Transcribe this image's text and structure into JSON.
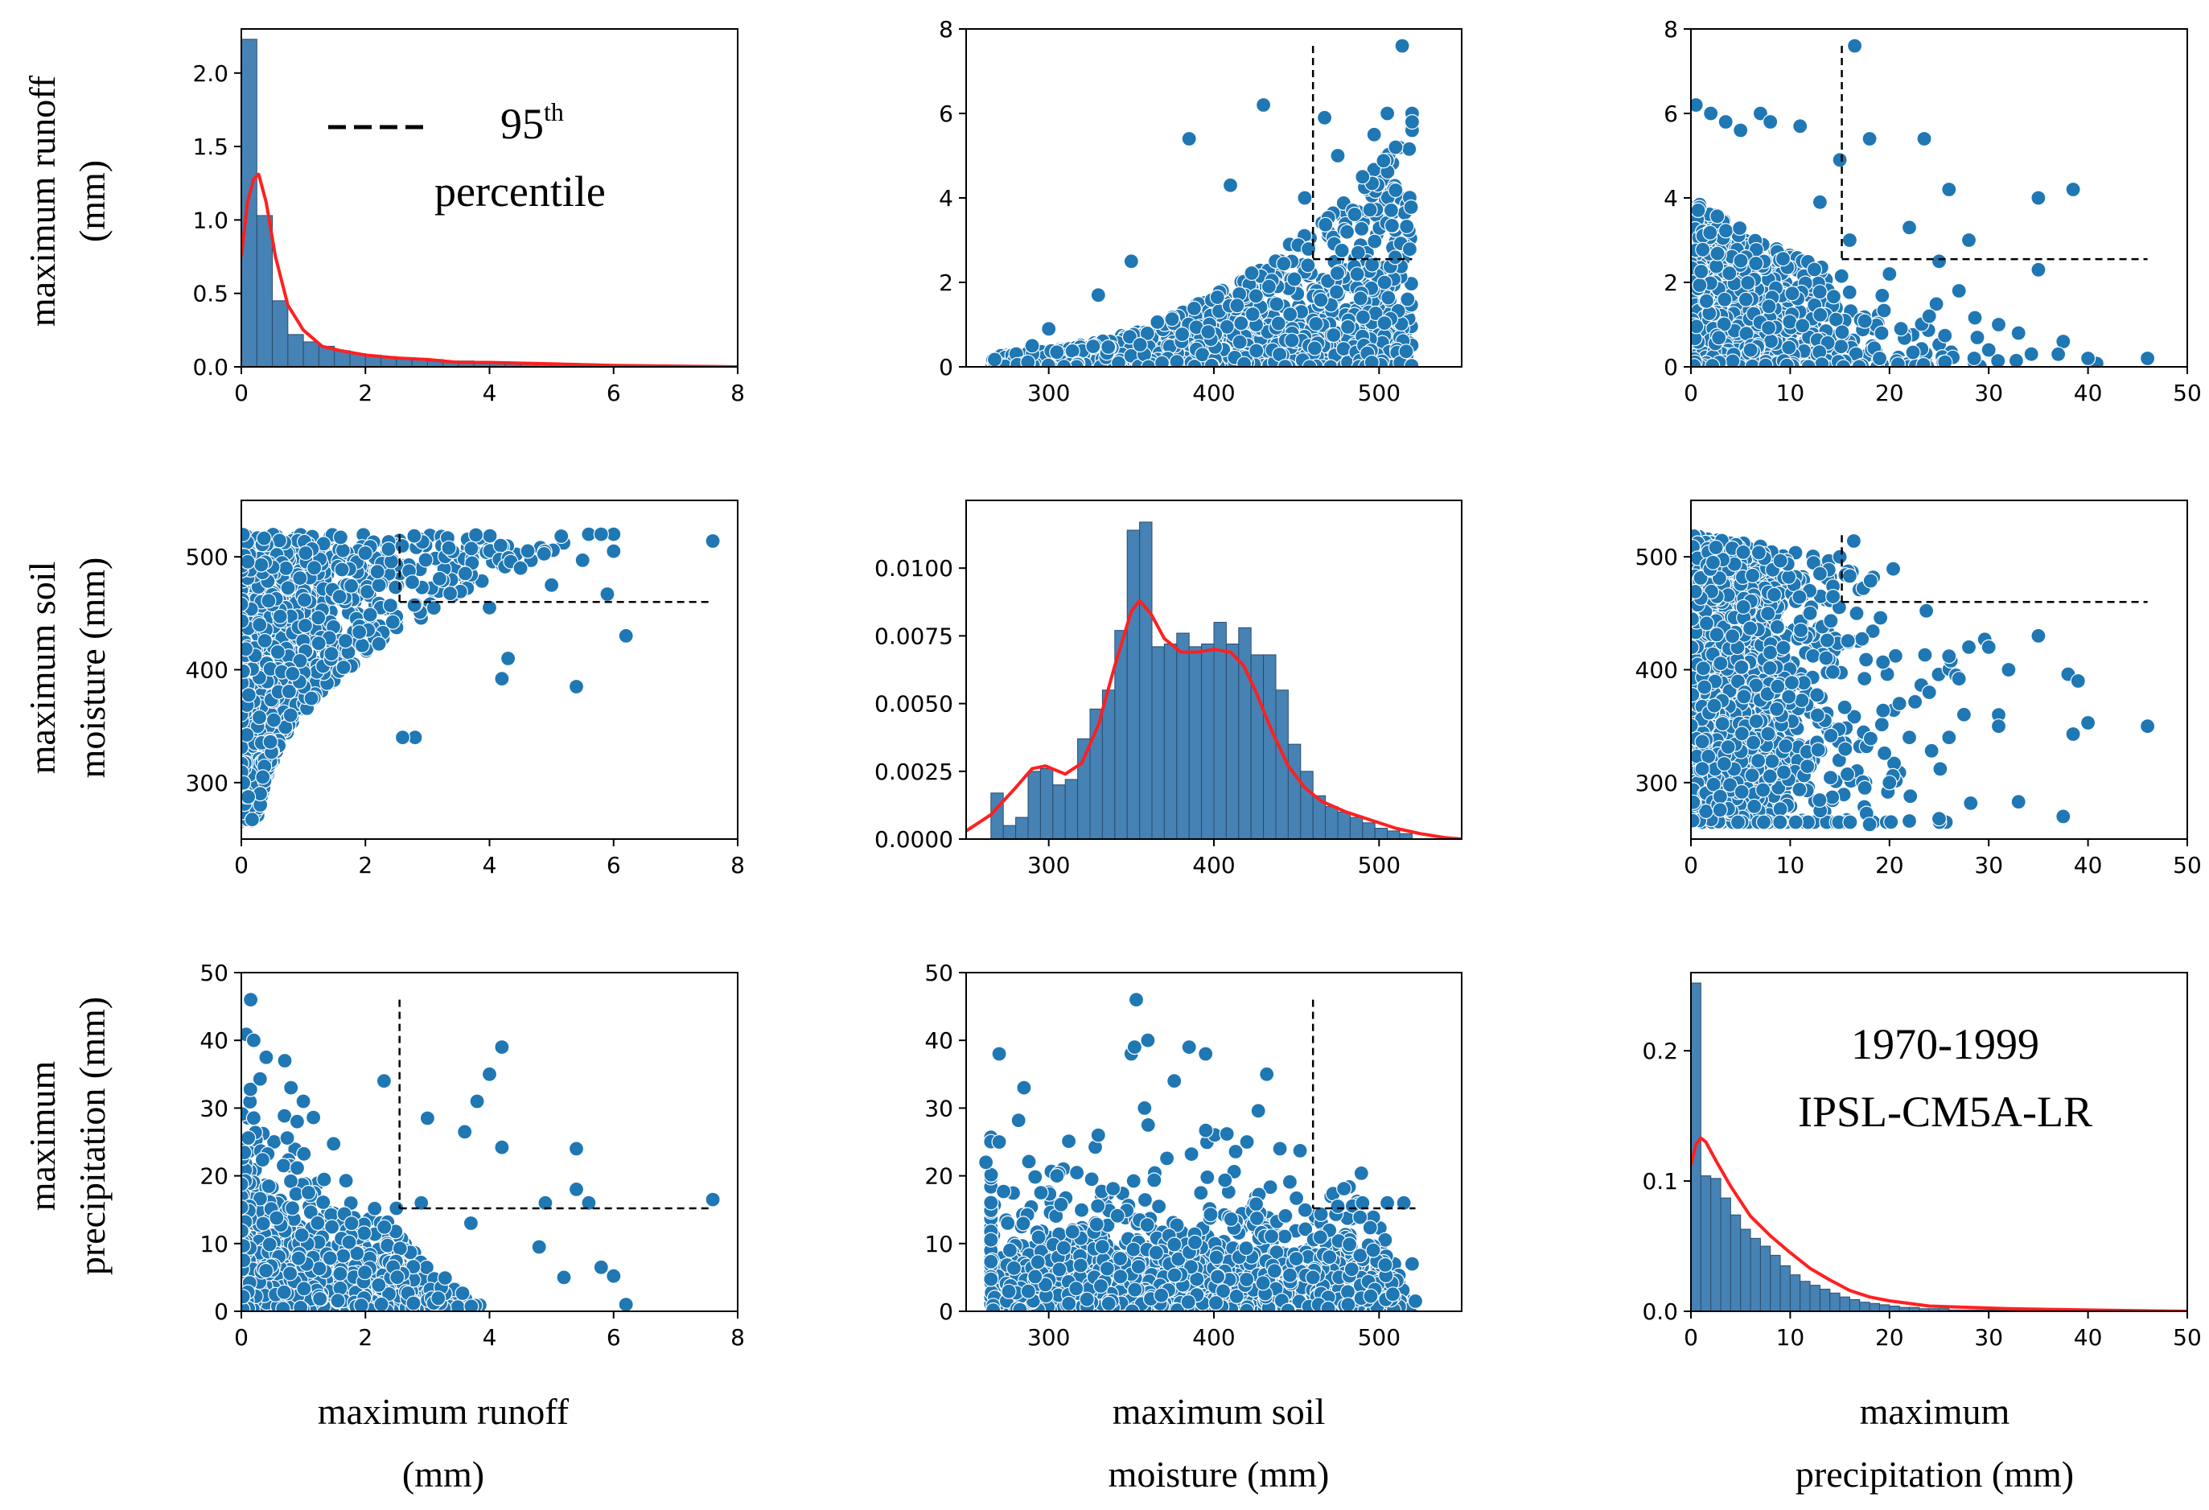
{
  "figure": {
    "legend_label": "95",
    "legend_sup": "th",
    "legend_label2": "percentile",
    "period": "1970-1999",
    "model": "IPSL-CM5A-LR",
    "row_labels": [
      [
        "maximum runoff",
        "(mm)"
      ],
      [
        "maximum soil",
        "moisture (mm)"
      ],
      [
        "maximum",
        "precipitation (mm)"
      ]
    ],
    "col_labels": [
      [
        "maximum runoff",
        "(mm)"
      ],
      [
        "maximum soil",
        "moisture (mm)"
      ],
      [
        "maximum",
        "precipitation (mm)"
      ]
    ]
  },
  "colors": {
    "points": "#1f77b4",
    "bars": "#4682b4",
    "kde": "#ff2020",
    "threshold": "#000000"
  },
  "thresholds": {
    "runoff": 2.55,
    "soil": 460,
    "precip": 15.2
  },
  "chart_data": [
    {
      "id": "runoff-hist",
      "type": "bar",
      "xlim": [
        0,
        8
      ],
      "ylim": [
        0,
        2.3
      ],
      "xticks": [
        0,
        2,
        4,
        6,
        8
      ],
      "yticks": [
        0.0,
        0.5,
        1.0,
        1.5,
        2.0
      ],
      "ytick_decimals": 1,
      "bin_width": 0.25,
      "bins": [
        0,
        0.25,
        0.5,
        0.75,
        1.0,
        1.25,
        1.5,
        1.75,
        2.0,
        2.25,
        2.5,
        2.75,
        3.0,
        3.25,
        3.5,
        3.75,
        4.0,
        4.25,
        4.5,
        4.75,
        5.0,
        5.25,
        5.5,
        5.75,
        6.0,
        6.25,
        6.5,
        6.75,
        7.0,
        7.25,
        7.5,
        7.75
      ],
      "values": [
        2.23,
        1.03,
        0.45,
        0.22,
        0.17,
        0.14,
        0.11,
        0.09,
        0.08,
        0.07,
        0.06,
        0.05,
        0.05,
        0.04,
        0.04,
        0.03,
        0.03,
        0.03,
        0.02,
        0.02,
        0.02,
        0.02,
        0.02,
        0.01,
        0.01,
        0.01,
        0.01,
        0.01,
        0.01,
        0.005,
        0.005,
        0.005
      ],
      "kde_x": [
        0,
        0.1,
        0.2,
        0.28,
        0.4,
        0.55,
        0.75,
        1.0,
        1.3,
        1.6,
        2.0,
        2.5,
        3.0,
        3.5,
        4.0,
        5.0,
        6.0,
        7.0,
        8.0
      ],
      "kde_y": [
        0.75,
        1.12,
        1.28,
        1.31,
        1.12,
        0.75,
        0.42,
        0.25,
        0.14,
        0.11,
        0.08,
        0.06,
        0.05,
        0.03,
        0.03,
        0.02,
        0.01,
        0.005,
        0.0
      ]
    },
    {
      "id": "soil-vs-runoff",
      "type": "scatter",
      "xlim": [
        250,
        550
      ],
      "ylim": [
        0,
        8
      ],
      "xticks": [
        300,
        400,
        500
      ],
      "yticks": [
        0,
        2,
        4,
        6,
        8
      ],
      "threshold_x": "soil",
      "threshold_y": "runoff",
      "seed": 11,
      "n": 1500,
      "extra_points": [
        [
          514,
          7.6
        ],
        [
          430,
          6.2
        ],
        [
          385,
          5.4
        ],
        [
          505,
          6.0
        ],
        [
          520,
          6.0
        ],
        [
          520,
          5.6
        ],
        [
          497,
          5.5
        ],
        [
          467,
          5.9
        ],
        [
          410,
          4.3
        ],
        [
          520,
          5.8
        ],
        [
          475,
          5.0
        ],
        [
          490,
          4.5
        ],
        [
          455,
          4.0
        ],
        [
          300,
          0.9
        ],
        [
          330,
          1.7
        ],
        [
          350,
          2.5
        ],
        [
          290,
          0.5
        ],
        [
          510,
          5.2
        ]
      ]
    },
    {
      "id": "precip-vs-runoff",
      "type": "scatter",
      "xlim": [
        0,
        50
      ],
      "ylim": [
        0,
        8
      ],
      "xticks": [
        0,
        10,
        20,
        30,
        40,
        50
      ],
      "yticks": [
        0,
        2,
        4,
        6,
        8
      ],
      "threshold_x": "precip",
      "threshold_y": "runoff",
      "seed": 23,
      "n": 1500,
      "extra_points": [
        [
          16.5,
          7.6
        ],
        [
          0.5,
          6.2
        ],
        [
          2,
          6.0
        ],
        [
          3.5,
          5.8
        ],
        [
          5,
          5.6
        ],
        [
          7,
          6.0
        ],
        [
          8,
          5.8
        ],
        [
          11,
          5.7
        ],
        [
          18,
          5.4
        ],
        [
          23.5,
          5.4
        ],
        [
          26,
          4.2
        ],
        [
          35,
          4.0
        ],
        [
          38.5,
          4.2
        ],
        [
          40,
          0.2
        ],
        [
          46,
          0.2
        ],
        [
          37.5,
          0.6
        ],
        [
          37,
          0.3
        ],
        [
          33,
          0.8
        ],
        [
          31,
          1.0
        ],
        [
          28,
          3.0
        ],
        [
          22,
          3.3
        ],
        [
          15,
          4.9
        ],
        [
          13,
          3.9
        ],
        [
          16,
          3.0
        ],
        [
          25,
          2.5
        ],
        [
          27,
          1.8
        ],
        [
          35,
          2.3
        ],
        [
          30,
          0.4
        ],
        [
          19,
          0.2
        ],
        [
          20,
          2.2
        ],
        [
          24,
          1.2
        ]
      ]
    },
    {
      "id": "runoff-vs-soil",
      "type": "scatter",
      "xlim": [
        0,
        8
      ],
      "ylim": [
        250,
        550
      ],
      "xticks": [
        0,
        2,
        4,
        6,
        8
      ],
      "yticks": [
        300,
        400,
        500
      ],
      "threshold_x": "runoff",
      "threshold_y": "soil",
      "seed": 11,
      "n": 1500,
      "swap": true,
      "extra_points": [
        [
          7.6,
          514
        ],
        [
          6.2,
          430
        ],
        [
          5.4,
          385
        ],
        [
          6.0,
          505
        ],
        [
          6.0,
          520
        ],
        [
          5.6,
          520
        ],
        [
          5.5,
          497
        ],
        [
          5.9,
          467
        ],
        [
          4.3,
          410
        ],
        [
          5.8,
          520
        ],
        [
          5.0,
          475
        ],
        [
          4.5,
          490
        ],
        [
          4.0,
          455
        ],
        [
          2.8,
          340
        ],
        [
          2.6,
          340
        ],
        [
          4.2,
          392
        ]
      ]
    },
    {
      "id": "soil-hist",
      "type": "bar",
      "xlim": [
        250,
        550
      ],
      "ylim": [
        0,
        0.0125
      ],
      "xticks": [
        300,
        400,
        500
      ],
      "yticks": [
        0.0,
        0.0025,
        0.005,
        0.0075,
        0.01
      ],
      "ytick_decimals": 4,
      "bin_width": 7.5,
      "bins": [
        265,
        272.5,
        280,
        287.5,
        295,
        302.5,
        310,
        317.5,
        325,
        332.5,
        340,
        347.5,
        355,
        362.5,
        370,
        377.5,
        385,
        392.5,
        400,
        407.5,
        415,
        422.5,
        430,
        437.5,
        445,
        452.5,
        460,
        467.5,
        475,
        482.5,
        490,
        497.5,
        505,
        512.5
      ],
      "values": [
        0.0017,
        0.0005,
        0.0008,
        0.0025,
        0.0026,
        0.002,
        0.0022,
        0.0037,
        0.0048,
        0.0055,
        0.0077,
        0.0114,
        0.0117,
        0.0071,
        0.0072,
        0.0076,
        0.0071,
        0.0072,
        0.008,
        0.0072,
        0.0078,
        0.0068,
        0.0068,
        0.0055,
        0.0035,
        0.0025,
        0.0016,
        0.0012,
        0.001,
        0.0008,
        0.0006,
        0.0004,
        0.0003,
        0.0002
      ],
      "kde_x": [
        250,
        265,
        280,
        290,
        298,
        310,
        320,
        330,
        340,
        350,
        355,
        362,
        370,
        380,
        390,
        400,
        410,
        418,
        425,
        435,
        445,
        455,
        465,
        480,
        495,
        510,
        525,
        540,
        550
      ],
      "kde_y": [
        0.0003,
        0.0009,
        0.0019,
        0.0026,
        0.0027,
        0.0024,
        0.0028,
        0.0042,
        0.0064,
        0.0084,
        0.0088,
        0.0083,
        0.0074,
        0.0069,
        0.0069,
        0.007,
        0.0069,
        0.0064,
        0.0055,
        0.004,
        0.0027,
        0.0019,
        0.0014,
        0.001,
        0.0007,
        0.0004,
        0.0002,
        5e-05,
        0.0
      ]
    },
    {
      "id": "precip-vs-soil",
      "type": "scatter",
      "xlim": [
        0,
        50
      ],
      "ylim": [
        250,
        550
      ],
      "xticks": [
        0,
        10,
        20,
        30,
        40,
        50
      ],
      "yticks": [
        300,
        400,
        500
      ],
      "threshold_x": "precip",
      "threshold_y": "soil",
      "seed": 37,
      "n": 1500,
      "extra_points": [
        [
          16.4,
          514
        ],
        [
          15,
          500
        ],
        [
          46,
          350
        ],
        [
          40,
          353
        ],
        [
          37.5,
          270
        ],
        [
          38.5,
          343
        ],
        [
          38,
          396
        ],
        [
          39,
          390
        ],
        [
          35,
          430
        ],
        [
          33,
          283
        ],
        [
          30,
          420
        ],
        [
          28,
          420
        ],
        [
          26,
          412
        ],
        [
          27,
          392
        ],
        [
          25,
          268
        ],
        [
          22,
          266
        ],
        [
          18,
          263
        ],
        [
          32,
          400
        ],
        [
          31,
          360
        ],
        [
          31,
          350
        ],
        [
          26,
          340
        ],
        [
          24,
          380
        ],
        [
          21,
          370
        ],
        [
          22,
          340
        ],
        [
          12,
          450
        ],
        [
          13,
          485
        ],
        [
          16,
          483
        ],
        [
          20,
          300
        ]
      ]
    },
    {
      "id": "runoff-vs-precip",
      "type": "scatter",
      "xlim": [
        0,
        8
      ],
      "ylim": [
        0,
        50
      ],
      "xticks": [
        0,
        2,
        4,
        6,
        8
      ],
      "yticks": [
        0,
        10,
        20,
        30,
        40,
        50
      ],
      "threshold_x": "runoff",
      "threshold_y": "precip",
      "seed": 23,
      "n": 1500,
      "swap": true,
      "extra_points": [
        [
          7.6,
          16.5
        ],
        [
          0.15,
          46
        ],
        [
          0.2,
          40
        ],
        [
          0.4,
          37.5
        ],
        [
          0.7,
          37
        ],
        [
          0.8,
          33
        ],
        [
          1.0,
          31
        ],
        [
          0.9,
          28
        ],
        [
          4.2,
          39
        ],
        [
          4.0,
          35
        ],
        [
          3.8,
          31
        ],
        [
          3.0,
          28.5
        ],
        [
          3.6,
          26.5
        ],
        [
          2.3,
          34
        ],
        [
          4.2,
          24.2
        ],
        [
          5.4,
          24
        ],
        [
          5.6,
          16
        ],
        [
          4.9,
          16
        ],
        [
          5.4,
          18
        ],
        [
          4.8,
          9.5
        ],
        [
          5.8,
          6.5
        ],
        [
          6.2,
          1.0
        ],
        [
          6.0,
          5.2
        ],
        [
          5.2,
          5
        ],
        [
          3.7,
          13
        ],
        [
          2.9,
          16
        ],
        [
          2.5,
          15.2
        ]
      ]
    },
    {
      "id": "soil-vs-precip",
      "type": "scatter",
      "xlim": [
        250,
        550
      ],
      "ylim": [
        0,
        50
      ],
      "xticks": [
        300,
        400,
        500
      ],
      "yticks": [
        0,
        10,
        20,
        30,
        40,
        50
      ],
      "threshold_x": "soil",
      "threshold_y": "precip",
      "seed": 37,
      "n": 1500,
      "swap": true,
      "extra_points": [
        [
          353,
          46
        ],
        [
          350,
          38
        ],
        [
          360,
          40
        ],
        [
          270,
          38
        ],
        [
          285,
          33
        ],
        [
          352,
          39
        ],
        [
          385,
          39
        ],
        [
          376,
          34
        ],
        [
          432,
          35
        ],
        [
          358,
          30
        ],
        [
          395,
          38
        ],
        [
          420,
          25
        ],
        [
          270,
          25
        ],
        [
          262,
          22
        ],
        [
          305,
          20
        ],
        [
          330,
          26
        ],
        [
          440,
          24
        ],
        [
          475,
          15.5
        ],
        [
          490,
          16
        ],
        [
          505,
          16
        ],
        [
          515,
          16
        ],
        [
          520,
          7
        ],
        [
          522,
          1.5
        ],
        [
          470,
          8
        ],
        [
          460,
          5
        ]
      ]
    },
    {
      "id": "precip-hist",
      "type": "bar",
      "xlim": [
        0,
        50
      ],
      "ylim": [
        0,
        0.26
      ],
      "xticks": [
        0,
        10,
        20,
        30,
        40,
        50
      ],
      "yticks": [
        0.0,
        0.1,
        0.2
      ],
      "ytick_decimals": 1,
      "bin_width": 1.0,
      "bins": [
        0,
        1,
        2,
        3,
        4,
        5,
        6,
        7,
        8,
        9,
        10,
        11,
        12,
        13,
        14,
        15,
        16,
        17,
        18,
        19,
        20,
        21,
        22,
        23,
        24,
        25,
        26,
        27,
        28,
        29,
        30,
        31,
        32,
        33,
        34,
        35,
        36,
        37,
        38,
        39,
        40,
        41,
        42,
        43,
        44,
        45
      ],
      "values": [
        0.252,
        0.104,
        0.102,
        0.087,
        0.074,
        0.063,
        0.056,
        0.05,
        0.043,
        0.035,
        0.028,
        0.023,
        0.02,
        0.017,
        0.014,
        0.011,
        0.009,
        0.007,
        0.006,
        0.005,
        0.004,
        0.003,
        0.003,
        0.002,
        0.002,
        0.002,
        0.001,
        0.001,
        0.001,
        0.001,
        0.001,
        0.0008,
        0.0006,
        0.0005,
        0.0005,
        0.0004,
        0.0003,
        0.0003,
        0.0003,
        0.0002,
        0.0002,
        0.0002,
        0.0001,
        0.0001,
        0.0001,
        0.0001
      ],
      "kde_x": [
        0,
        0.5,
        1.0,
        1.5,
        2.5,
        4,
        6,
        8,
        10,
        12,
        14,
        16,
        18,
        20,
        24,
        28,
        32,
        36,
        40,
        45,
        50
      ],
      "kde_y": [
        0.112,
        0.128,
        0.133,
        0.13,
        0.116,
        0.096,
        0.073,
        0.058,
        0.045,
        0.033,
        0.024,
        0.016,
        0.011,
        0.008,
        0.004,
        0.003,
        0.002,
        0.0015,
        0.001,
        0.0005,
        0.0
      ]
    }
  ]
}
